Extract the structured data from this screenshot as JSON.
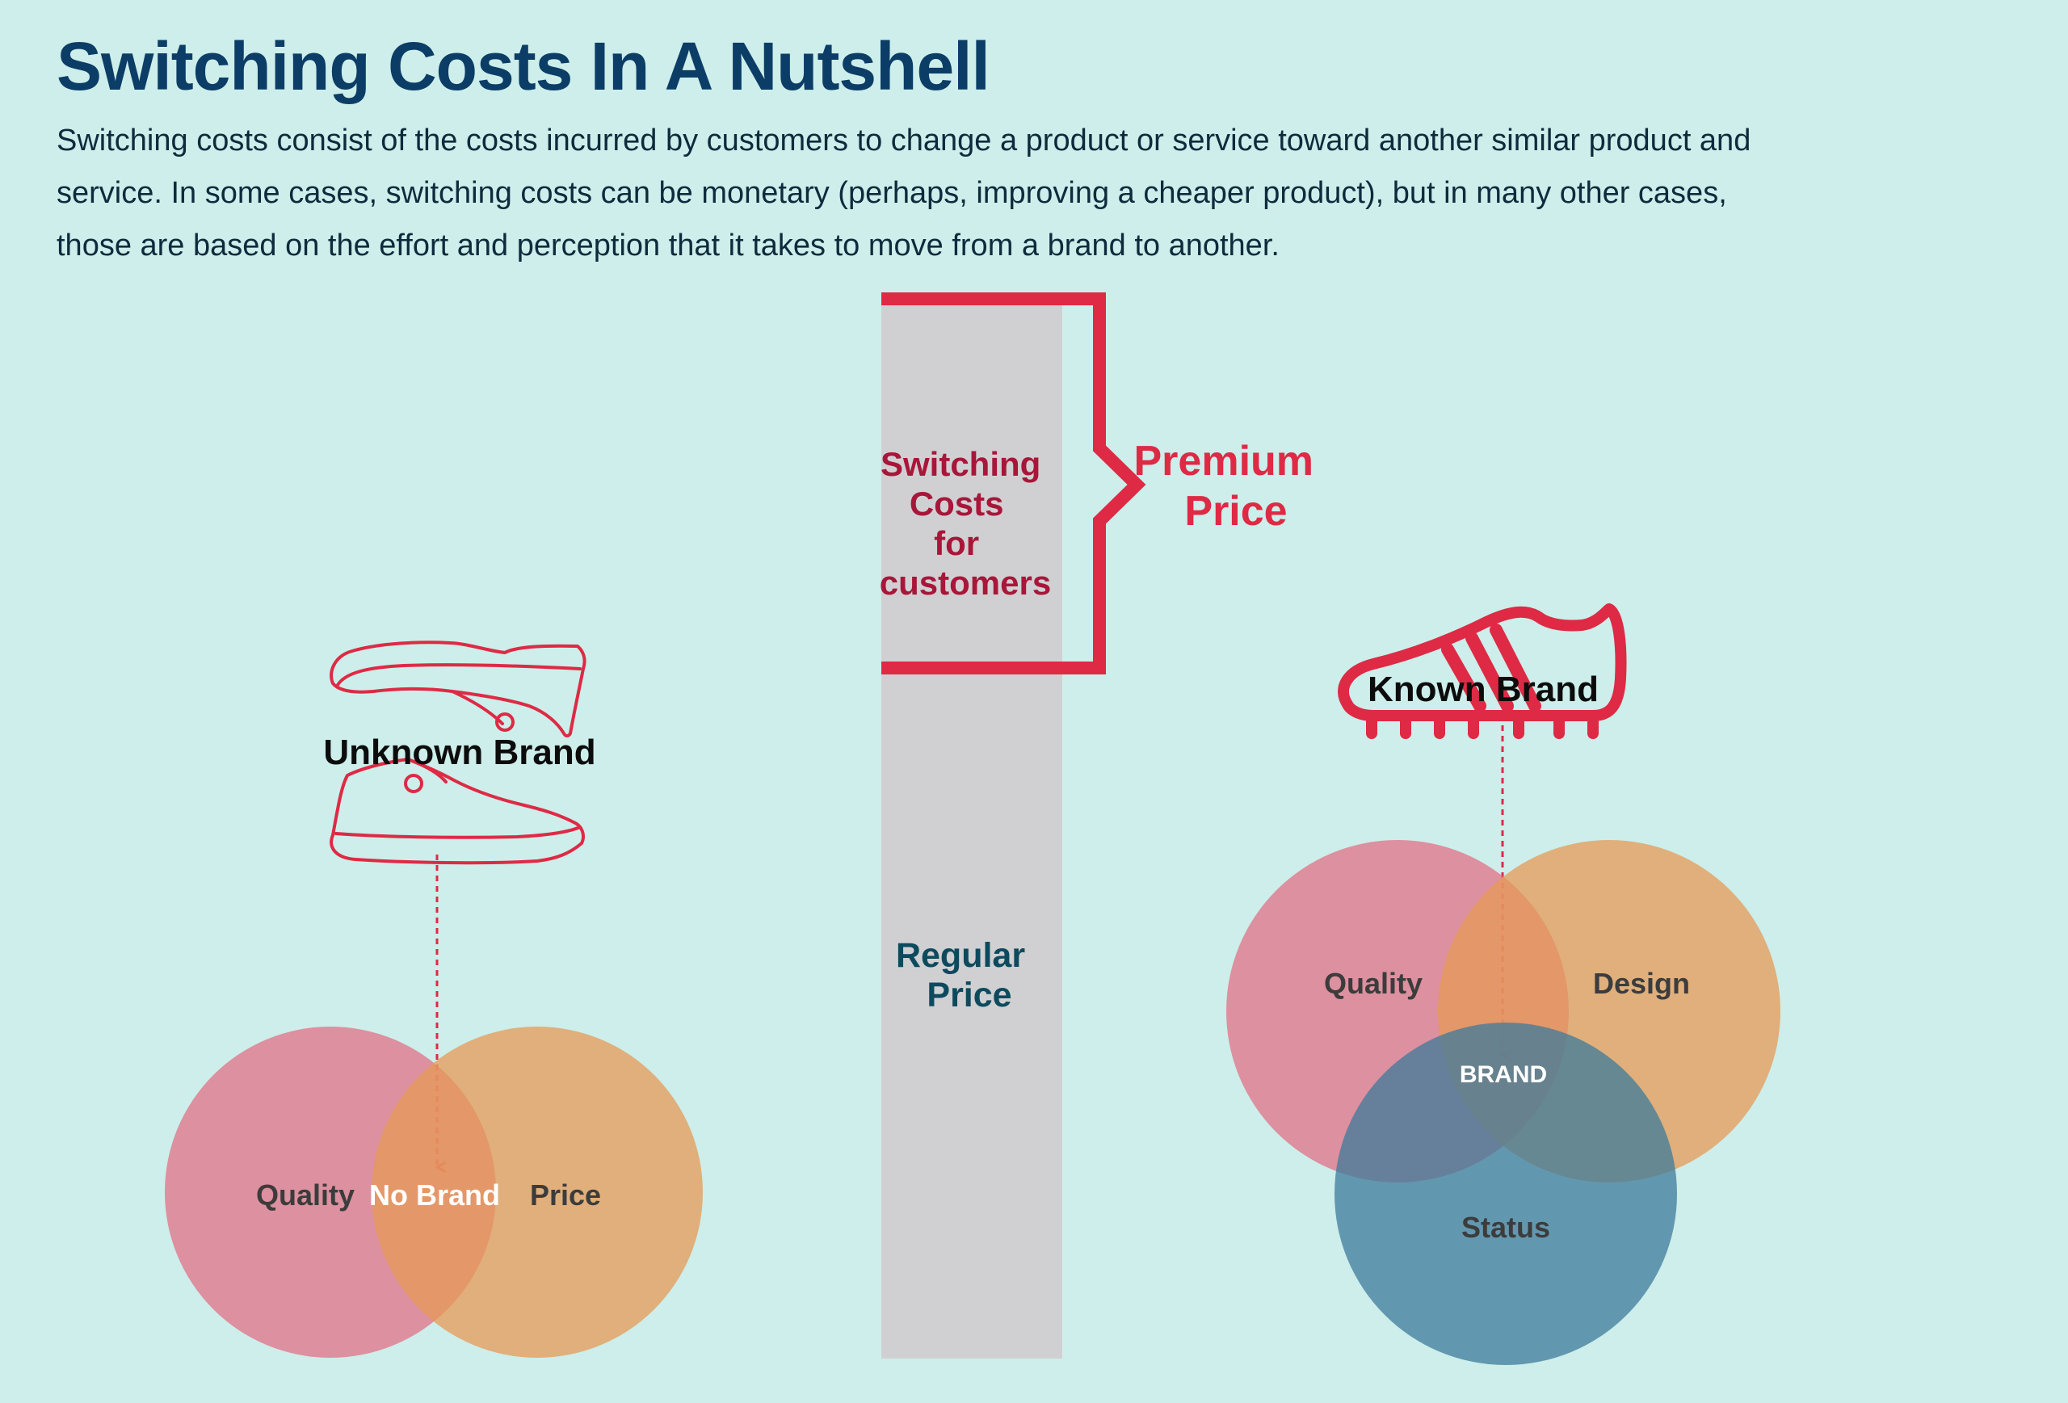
{
  "header": {
    "title": "Switching Costs In A Nutshell",
    "description": "Switching costs consist of the costs incurred by customers to change a product or service toward another similar product and service. In some cases, switching costs can be monetary (perhaps, improving a cheaper product), but in many other cases, those are based on the effort and perception that it takes to move from a brand to another."
  },
  "price_bar": {
    "switching_costs_lines": [
      "Switching",
      "Costs",
      "for",
      "customers"
    ],
    "premium_lines": [
      "Premium",
      "Price"
    ],
    "regular_lines": [
      "Regular",
      "Price"
    ]
  },
  "unknown_brand": {
    "label": "Unknown Brand",
    "icon": "sneaker-outline-icon",
    "venn": {
      "left": "Quality",
      "center": "No Brand",
      "right": "Price"
    }
  },
  "known_brand": {
    "label": "Known Brand",
    "icon": "football-boot-icon",
    "venn": {
      "top_left": "Quality",
      "top_right": "Design",
      "bottom": "Status",
      "center": "BRAND"
    }
  },
  "colors": {
    "background": "#cdeeea",
    "title": "#0b3d66",
    "accent_red": "#de2a45",
    "circle_quality": "#e17086",
    "circle_price": "#e59a55",
    "circle_status": "#3d7b9b",
    "bar_gray": "#d0d0d2"
  }
}
